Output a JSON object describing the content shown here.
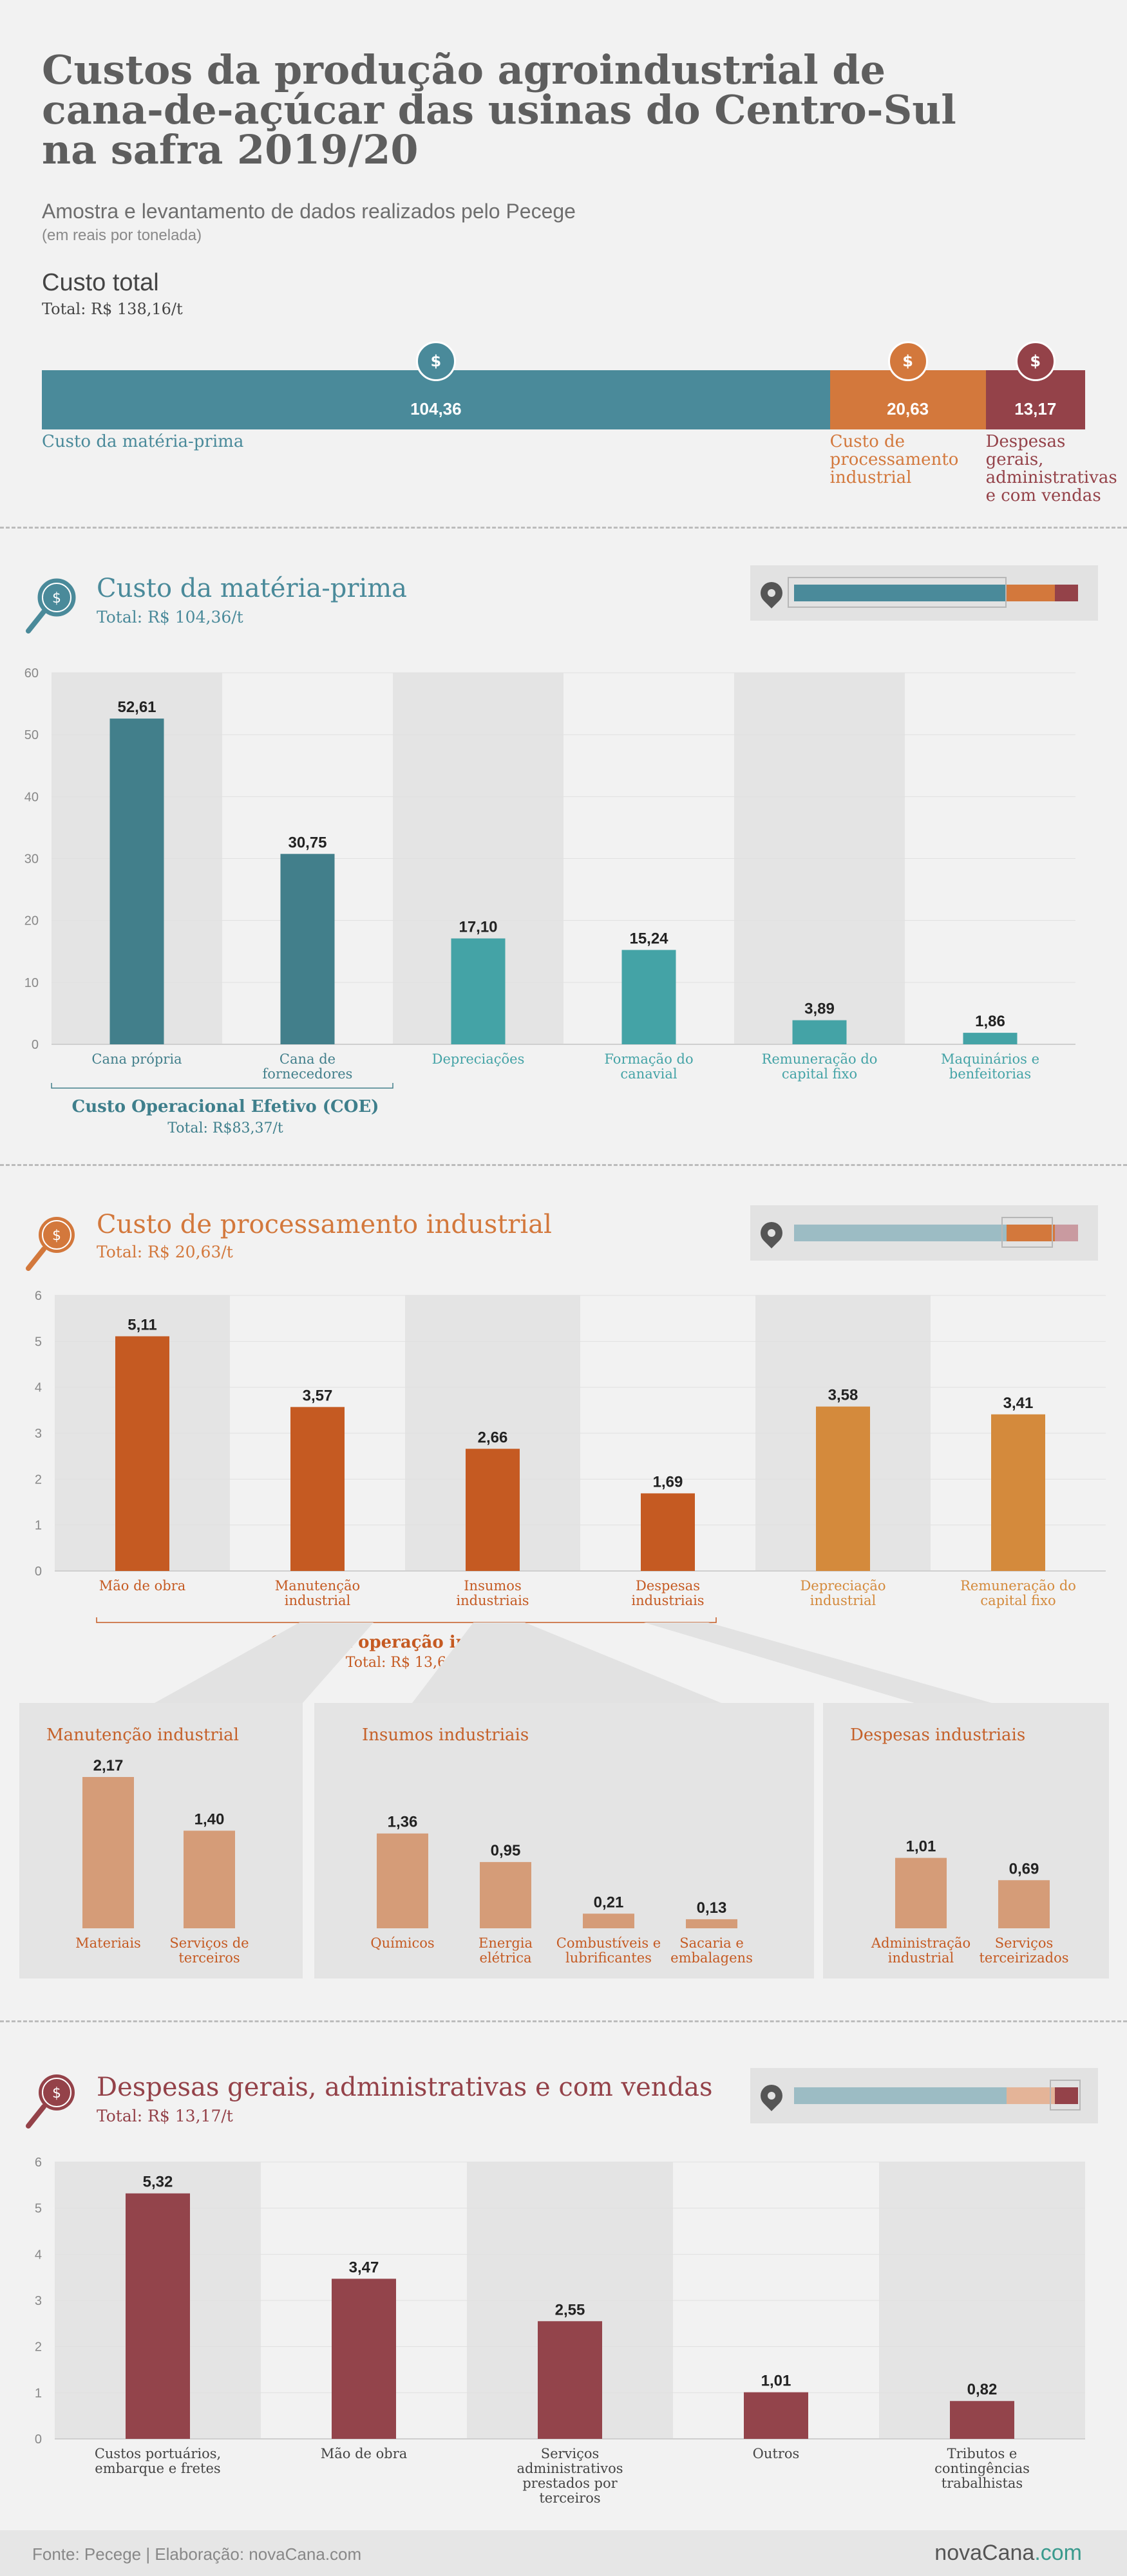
{
  "header": {
    "title": "Custos da produção agroindustrial de cana-de-açúcar das usinas do Centro-Sul na safra 2019/20",
    "subtitle": "Amostra e levantamento de dados realizados pelo Pecege",
    "unit": "(em reais por tonelada)"
  },
  "total_cost": {
    "title": "Custo total",
    "total": "Total: R$ 138,16/t",
    "segments": [
      {
        "label": "Custo da matéria-prima",
        "value": 104.36,
        "value_label": "104,36",
        "color": "#4a8a9a"
      },
      {
        "label": "Custo de processamento industrial",
        "value": 20.63,
        "value_label": "20,63",
        "color": "#d3783c"
      },
      {
        "label": "Despesas gerais, administrativas e com vendas",
        "value": 13.17,
        "value_label": "13,17",
        "color": "#944249"
      }
    ],
    "icon": "money-bag-icon"
  },
  "colors": {
    "teal_dark": "#427f8b",
    "teal_light": "#44a3a6",
    "orange_dark": "#c55a22",
    "orange_light": "#d48a3c",
    "orange_pale": "#d59c78",
    "wine": "#93444b"
  },
  "chart_data": [
    {
      "type": "bar",
      "id": "materia_prima",
      "title": "Custo da matéria-prima",
      "total": "Total: R$ 104,36/t",
      "categories": [
        "Cana própria",
        "Cana de fornecedores",
        "Depreciações",
        "Formação do canavial",
        "Remuneração do capital fixo",
        "Maquinários e benfeitorias"
      ],
      "values": [
        52.61,
        30.75,
        17.1,
        15.24,
        3.89,
        1.86
      ],
      "value_labels": [
        "52,61",
        "30,75",
        "17,10",
        "15,24",
        "3,89",
        "1,86"
      ],
      "ylim": [
        0,
        60
      ],
      "yticks": [
        0,
        10,
        20,
        30,
        40,
        50,
        60
      ],
      "group": {
        "label": "Custo Operacional Efetivo (COE)",
        "total": "Total: R$83,37/t"
      }
    },
    {
      "type": "bar",
      "id": "processamento",
      "title": "Custo de processamento industrial",
      "total": "Total: R$ 20,63/t",
      "categories": [
        "Mão de obra",
        "Manutenção industrial",
        "Insumos industriais",
        "Despesas industriais",
        "Depreciação industrial",
        "Remuneração do capital fixo"
      ],
      "values": [
        5.11,
        3.57,
        2.66,
        1.69,
        3.58,
        3.41
      ],
      "value_labels": [
        "5,11",
        "3,57",
        "2,66",
        "1,69",
        "3,58",
        "3,41"
      ],
      "ylim": [
        0,
        6
      ],
      "yticks": [
        0,
        1,
        2,
        3,
        4,
        5,
        6
      ],
      "group": {
        "label": "Custo da operação industrial",
        "total": "Total: R$ 13,64/t"
      }
    },
    {
      "type": "bar",
      "id": "manutencao",
      "title": "Manutenção industrial",
      "categories": [
        "Materiais",
        "Serviços de terceiros"
      ],
      "values": [
        2.17,
        1.4
      ],
      "value_labels": [
        "2,17",
        "1,40"
      ]
    },
    {
      "type": "bar",
      "id": "insumos",
      "title": "Insumos industriais",
      "categories": [
        "Químicos",
        "Energia elétrica",
        "Combustíveis e lubrificantes",
        "Sacaria e embalagens"
      ],
      "values": [
        1.36,
        0.95,
        0.21,
        0.13
      ],
      "value_labels": [
        "1,36",
        "0,95",
        "0,21",
        "0,13"
      ]
    },
    {
      "type": "bar",
      "id": "despesas_ind",
      "title": "Despesas industriais",
      "categories": [
        "Administração industrial",
        "Serviços terceirizados"
      ],
      "values": [
        1.01,
        0.69
      ],
      "value_labels": [
        "1,01",
        "0,69"
      ]
    },
    {
      "type": "bar",
      "id": "despesas_gerais",
      "title": "Despesas gerais, administrativas e com vendas",
      "total": "Total: R$ 13,17/t",
      "categories": [
        "Custos portuários, embarque e fretes",
        "Mão de obra",
        "Serviços administrativos prestados por terceiros",
        "Outros",
        "Tributos e contingências trabalhistas"
      ],
      "values": [
        5.32,
        3.47,
        2.55,
        1.01,
        0.82
      ],
      "value_labels": [
        "5,32",
        "3,47",
        "2,55",
        "1,01",
        "0,82"
      ],
      "ylim": [
        0,
        6
      ],
      "yticks": [
        0,
        1,
        2,
        3,
        4,
        5,
        6
      ]
    }
  ],
  "footer": {
    "source": "Fonte: Pecege | Elaboração: novaCana.com",
    "brand": "novaCana",
    "brand_domain": ".com"
  }
}
